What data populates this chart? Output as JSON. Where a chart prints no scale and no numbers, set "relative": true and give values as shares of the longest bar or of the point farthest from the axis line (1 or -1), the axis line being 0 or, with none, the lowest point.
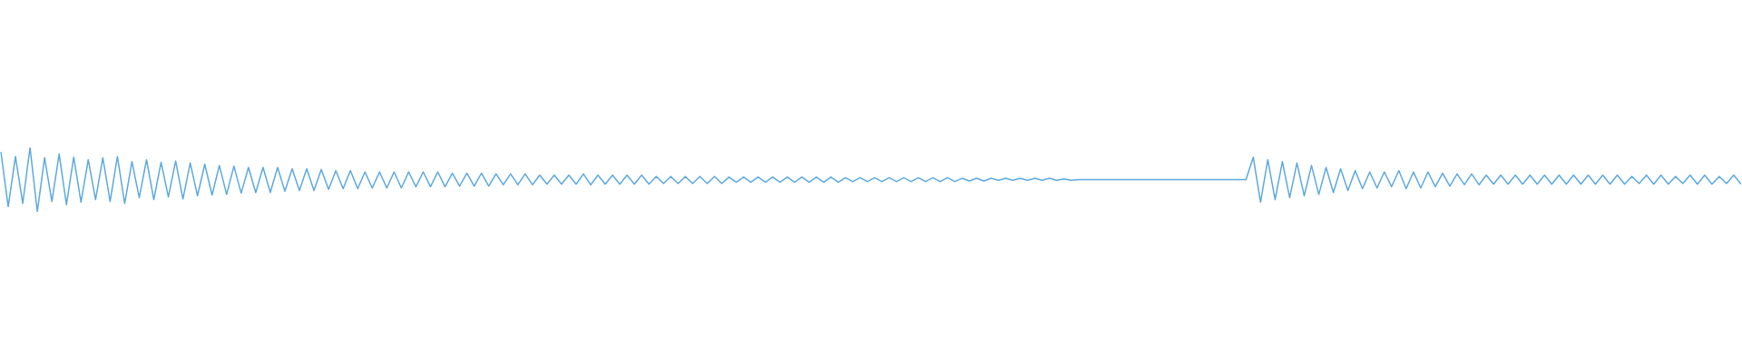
{
  "chart_data": {
    "type": "line",
    "relative": true,
    "color": "#5ca9e0",
    "marker": "none",
    "categories": [
      null,
      null,
      null,
      null,
      null,
      null,
      null,
      null,
      null,
      null,
      null,
      null,
      null,
      null,
      null,
      null,
      null,
      null,
      null,
      null,
      null,
      null,
      null,
      null,
      null,
      null,
      null,
      null,
      null,
      null,
      null,
      null,
      null,
      null,
      null,
      null,
      null,
      null,
      null,
      null,
      null,
      null,
      null,
      null,
      null,
      null,
      null,
      null,
      null,
      null,
      null,
      null,
      null,
      null,
      null,
      null,
      null,
      null,
      null,
      null,
      null,
      null,
      null,
      null,
      null,
      null,
      null,
      null,
      null,
      null,
      null,
      null,
      null,
      null,
      null,
      null,
      null,
      null,
      null,
      null,
      null,
      null,
      null,
      null,
      null,
      null,
      null,
      null,
      null,
      null,
      null,
      null,
      null,
      null,
      null,
      null,
      null,
      null,
      null,
      null,
      null,
      null,
      null,
      null,
      null,
      null,
      null,
      null,
      null,
      null,
      null,
      null,
      null,
      null,
      null,
      null,
      null,
      null,
      null,
      null,
      null,
      null,
      null,
      null,
      null,
      null,
      null,
      null,
      null,
      null,
      null,
      null,
      null,
      null,
      null,
      null,
      null,
      null,
      null,
      null,
      null,
      null,
      null,
      null,
      null,
      null,
      null,
      null,
      null,
      null,
      null,
      null,
      null,
      null,
      null,
      null,
      null,
      null,
      null,
      null,
      null,
      null,
      null,
      null,
      null,
      null,
      null,
      null,
      null,
      null,
      null,
      null,
      null,
      null,
      null,
      null,
      null,
      null,
      null,
      null,
      null,
      null,
      null,
      null,
      null,
      null,
      null,
      null,
      null,
      null,
      null,
      null,
      null,
      null,
      null,
      null,
      null,
      null,
      null,
      null,
      null,
      null,
      null,
      null,
      null,
      null,
      null,
      null,
      null,
      null,
      null,
      null,
      null,
      null,
      null,
      null,
      null,
      null,
      null,
      null,
      null,
      null,
      null,
      null,
      null,
      null,
      null,
      null,
      null,
      null,
      null,
      null,
      null,
      null,
      null,
      null,
      null,
      null,
      null,
      null
    ],
    "values": [
      0.93,
      0.08,
      0.86,
      0.13,
      1,
      0,
      0.84,
      0.16,
      0.9,
      0.11,
      0.85,
      0.15,
      0.81,
      0.19,
      0.84,
      0.16,
      0.86,
      0.13,
      0.78,
      0.22,
      0.81,
      0.19,
      0.77,
      0.23,
      0.79,
      0.2,
      0.76,
      0.25,
      0.74,
      0.26,
      0.72,
      0.27,
      0.71,
      0.29,
      0.69,
      0.3,
      0.69,
      0.3,
      0.69,
      0.32,
      0.67,
      0.33,
      0.67,
      0.33,
      0.66,
      0.35,
      0.64,
      0.36,
      0.64,
      0.36,
      0.62,
      0.37,
      0.62,
      0.37,
      0.62,
      0.37,
      0.62,
      0.39,
      0.62,
      0.39,
      0.62,
      0.39,
      0.6,
      0.4,
      0.6,
      0.4,
      0.6,
      0.4,
      0.59,
      0.42,
      0.59,
      0.42,
      0.59,
      0.42,
      0.57,
      0.43,
      0.57,
      0.43,
      0.57,
      0.43,
      0.59,
      0.42,
      0.57,
      0.43,
      0.57,
      0.43,
      0.57,
      0.43,
      0.57,
      0.43,
      0.55,
      0.44,
      0.55,
      0.44,
      0.55,
      0.44,
      0.55,
      0.44,
      0.55,
      0.44,
      0.54,
      0.46,
      0.54,
      0.46,
      0.54,
      0.46,
      0.54,
      0.46,
      0.54,
      0.46,
      0.54,
      0.46,
      0.54,
      0.46,
      0.54,
      0.46,
      0.53,
      0.47,
      0.53,
      0.47,
      0.53,
      0.47,
      0.53,
      0.47,
      0.53,
      0.47,
      0.53,
      0.47,
      0.53,
      0.47,
      0.53,
      0.47,
      0.52,
      0.48,
      0.52,
      0.48,
      0.52,
      0.49,
      0.52,
      0.49,
      0.52,
      0.49,
      0.52,
      0.49,
      0.52,
      0.49,
      0.51,
      0.49,
      0.5,
      0.5,
      0.5,
      0.5,
      0.5,
      0.5,
      0.5,
      0.5,
      0.5,
      0.5,
      0.5,
      0.5,
      0.5,
      0.5,
      0.5,
      0.5,
      0.5,
      0.5,
      0.5,
      0.5,
      0.5,
      0.5,
      0.5,
      0.5,
      0.85,
      0.15,
      0.81,
      0.19,
      0.78,
      0.22,
      0.76,
      0.25,
      0.72,
      0.27,
      0.69,
      0.3,
      0.67,
      0.33,
      0.64,
      0.36,
      0.62,
      0.37,
      0.62,
      0.39,
      0.64,
      0.36,
      0.62,
      0.37,
      0.62,
      0.39,
      0.6,
      0.4,
      0.59,
      0.42,
      0.59,
      0.42,
      0.57,
      0.43,
      0.57,
      0.43,
      0.57,
      0.43,
      0.57,
      0.43,
      0.57,
      0.43,
      0.57,
      0.43,
      0.57,
      0.43,
      0.57,
      0.43,
      0.57,
      0.43,
      0.57,
      0.43,
      0.55,
      0.44,
      0.57,
      0.43,
      0.57,
      0.43,
      0.55,
      0.44,
      0.57,
      0.43,
      0.57,
      0.43,
      0.55,
      0.44,
      0.57,
      0.43
    ]
  }
}
